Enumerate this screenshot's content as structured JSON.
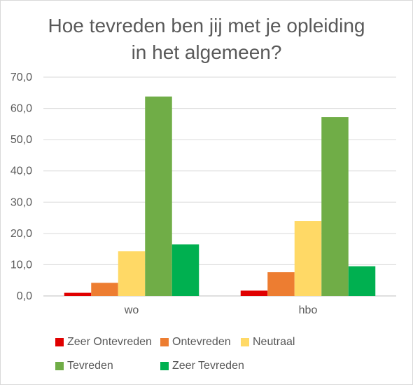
{
  "chart_data": {
    "type": "bar",
    "title": "Hoe tevreden ben jij met je opleiding in het algemeen?",
    "title_lines": [
      "Hoe tevreden ben jij met je opleiding",
      "in het algemeen?"
    ],
    "categories": [
      "wo",
      "hbo"
    ],
    "series": [
      {
        "name": "Zeer Ontevreden",
        "color": "#e00000",
        "values": [
          1.0,
          1.7
        ]
      },
      {
        "name": "Ontevreden",
        "color": "#ed7d31",
        "values": [
          4.2,
          7.6
        ]
      },
      {
        "name": "Neutraal",
        "color": "#ffd966",
        "values": [
          14.3,
          24.0
        ]
      },
      {
        "name": "Tevreden",
        "color": "#70ad47",
        "values": [
          63.8,
          57.2
        ]
      },
      {
        "name": "Zeer Tevreden",
        "color": "#00b050",
        "values": [
          16.5,
          9.5
        ]
      }
    ],
    "ylim": [
      0,
      70
    ],
    "yticks": [
      "0,0",
      "10,0",
      "20,0",
      "30,0",
      "40,0",
      "50,0",
      "60,0",
      "70,0"
    ],
    "grid": true,
    "legend_position": "bottom"
  }
}
